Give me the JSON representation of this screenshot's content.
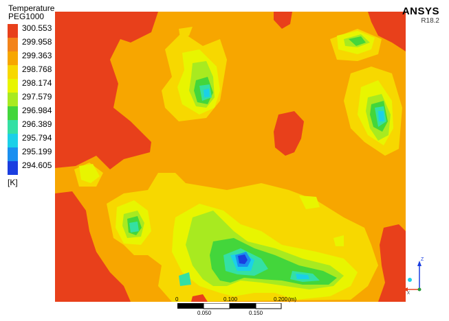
{
  "legend": {
    "title": "Temperature",
    "subtitle": "PEG1000",
    "unit": "[K]",
    "ticks": [
      "300.553",
      "299.958",
      "299.363",
      "298.768",
      "298.174",
      "297.579",
      "296.984",
      "296.389",
      "295.794",
      "295.199",
      "294.605"
    ],
    "colors": [
      "#e8401b",
      "#f3831a",
      "#f7a600",
      "#f7d800",
      "#e8f500",
      "#a8ea20",
      "#43d63b",
      "#34e0a4",
      "#1bd0e8",
      "#1a8ff0",
      "#1a3ee0"
    ]
  },
  "brand": {
    "name": "ANSYS",
    "version": "R18.2"
  },
  "scale_bar": {
    "top_labels": [
      "0",
      "0.100",
      "0.200",
      "(m)"
    ],
    "bottom_labels": [
      "0.050",
      "0.150"
    ]
  },
  "axes_triad": {
    "z_label": "Z",
    "x_label": "X"
  }
}
